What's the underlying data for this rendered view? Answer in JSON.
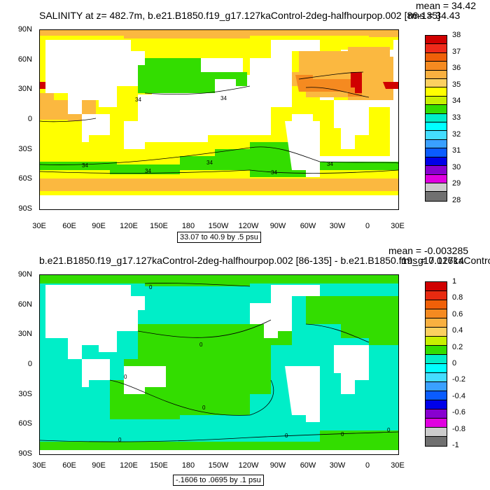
{
  "top": {
    "title": "SALINITY at z= 482.7m, b.e21.B1850.f19_g17.127kaControl-2deg-halfhourpop.002 [86-135]",
    "mean": "mean = 34.42",
    "rms": "rms = 34.43",
    "range": "33.07 to 40.9 by .5 psu",
    "colorbar_labels": [
      "38",
      "37",
      "36",
      "35",
      "34",
      "33",
      "32",
      "31",
      "30",
      "29",
      "28"
    ],
    "colorbar_colors": [
      "#d00000",
      "#ef2a1a",
      "#f06008",
      "#f58a20",
      "#f9b040",
      "#fbd060",
      "#ffff00",
      "#c8f000",
      "#33dd00",
      "#00eec8",
      "#00ffff",
      "#44ddff",
      "#3aa0ff",
      "#0a5cff",
      "#0000e8",
      "#8800d0",
      "#e000e0",
      "#cccccc",
      "#707070"
    ],
    "contour_labels": [
      "34",
      "34",
      "34",
      "34",
      "34",
      "34",
      "34"
    ],
    "colors": {
      "land": "#ffffff",
      "main": "#ffff00",
      "low": "#33dd00",
      "high": "#fbb840",
      "higher": "#f58a20",
      "highest": "#d00000"
    }
  },
  "bottom": {
    "title": "b.e21.B1850.f19_g17.127kaControl-2deg-halfhourpop.002 [86-135] - b.e21.B1850.f19_g17.127kaControl",
    "mean": "mean = -0.003285",
    "rms": "rms = 0.01614",
    "range": "-.1606 to .0695 by .1 psu",
    "colorbar_labels": [
      "1",
      "0.8",
      "0.6",
      "0.4",
      "0.2",
      "0",
      "-0.2",
      "-0.4",
      "-0.6",
      "-0.8",
      "-1"
    ],
    "colorbar_colors": [
      "#d00000",
      "#e82a10",
      "#f06008",
      "#f58a20",
      "#f9b040",
      "#fbd060",
      "#c8f000",
      "#33dd00",
      "#00eec8",
      "#00ffff",
      "#44ddff",
      "#3aa0ff",
      "#0a5cff",
      "#0000e8",
      "#8800d0",
      "#e000e0",
      "#cccccc",
      "#707070"
    ],
    "contour_labels": [
      "0",
      "0",
      "0",
      "0",
      "0",
      "0",
      "0",
      "0"
    ],
    "colors": {
      "land": "#ffffff",
      "pos": "#33dd00",
      "neg": "#00eec8"
    }
  },
  "axes": {
    "lat_labels": [
      "90N",
      "60N",
      "30N",
      "0",
      "30S",
      "60S",
      "90S"
    ],
    "lon_labels": [
      "30E",
      "60E",
      "90E",
      "120E",
      "150E",
      "180",
      "150W",
      "120W",
      "90W",
      "60W",
      "30W",
      "0",
      "30E"
    ]
  }
}
